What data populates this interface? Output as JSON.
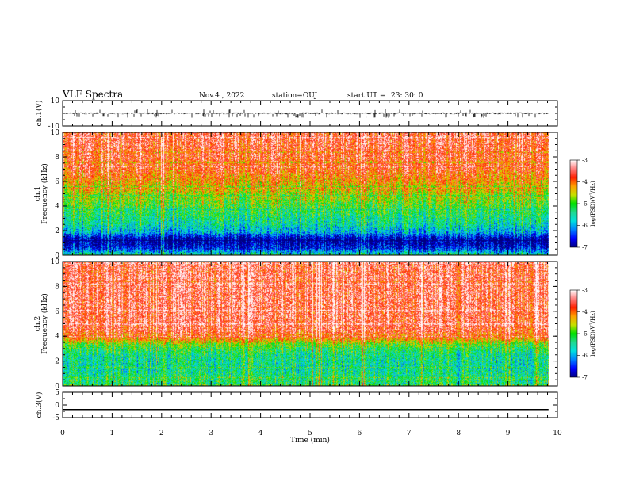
{
  "header": {
    "title": "VLF Spectra",
    "date": "Nov.4 , 2022",
    "station": "station=OUJ",
    "start_label": "start  UT  =",
    "start_time": "23: 30: 0"
  },
  "colors": {
    "colormap": [
      "#000080",
      "#0000ff",
      "#0080ff",
      "#00e0e0",
      "#20d890",
      "#00e000",
      "#c8e000",
      "#ffa000",
      "#ff2000",
      "#ff8080",
      "#ffffff"
    ],
    "trace": "#000000"
  },
  "chart_data": [
    {
      "type": "line",
      "id": "ch1-waveform",
      "ylabel": "ch.1(V)",
      "ylim": [
        -10,
        10
      ],
      "yticks": [
        {
          "value": 10,
          "label": "10"
        },
        {
          "value": -10,
          "label": "-10"
        }
      ],
      "xlim": [
        0,
        10
      ],
      "baseline": 0,
      "noise_amplitude": 1.5,
      "spike_amplitude": 3.5
    },
    {
      "type": "heatmap",
      "id": "ch1-spectrogram",
      "ylabel": "ch.1\nFrequency (kHz)",
      "ylabel_lines": [
        "ch.1",
        "Frequency  (kHz)"
      ],
      "xlim": [
        0,
        10
      ],
      "ylim": [
        0,
        10
      ],
      "yticks": [
        {
          "value": 0,
          "label": "0"
        },
        {
          "value": 2,
          "label": "2"
        },
        {
          "value": 4,
          "label": "4"
        },
        {
          "value": 6,
          "label": "6"
        },
        {
          "value": 8,
          "label": "8"
        },
        {
          "value": 10,
          "label": "10"
        }
      ],
      "data_end_min": 9.82,
      "color_scale": {
        "label": "log(PSD)(V²/Hz)",
        "label_parts": [
          "log(PSD)(V",
          "2",
          "/Hz)"
        ],
        "min": -7,
        "max": -3,
        "ticks": [
          {
            "value": -3,
            "label": "-3"
          },
          {
            "value": -4,
            "label": "-4"
          },
          {
            "value": -5,
            "label": "-5"
          },
          {
            "value": -6,
            "label": "-6"
          },
          {
            "value": -7,
            "label": "-7"
          }
        ]
      },
      "profile": [
        {
          "f": 0.0,
          "v": -5.2
        },
        {
          "f": 0.3,
          "v": -6.0
        },
        {
          "f": 0.6,
          "v": -6.6
        },
        {
          "f": 1.0,
          "v": -6.9
        },
        {
          "f": 1.4,
          "v": -6.9
        },
        {
          "f": 1.8,
          "v": -6.0
        },
        {
          "f": 2.4,
          "v": -5.6
        },
        {
          "f": 3.2,
          "v": -5.3
        },
        {
          "f": 4.0,
          "v": -5.0
        },
        {
          "f": 5.0,
          "v": -4.6
        },
        {
          "f": 6.0,
          "v": -4.2
        },
        {
          "f": 7.0,
          "v": -3.8
        },
        {
          "f": 8.0,
          "v": -3.7
        },
        {
          "f": 9.0,
          "v": -3.6
        },
        {
          "f": 10.0,
          "v": -3.6
        }
      ]
    },
    {
      "type": "heatmap",
      "id": "ch2-spectrogram",
      "ylabel": "ch.2\nFrequency (kHz)",
      "ylabel_lines": [
        "ch.2",
        "Frequency  (kHz)"
      ],
      "xlim": [
        0,
        10
      ],
      "ylim": [
        0,
        10
      ],
      "yticks": [
        {
          "value": 0,
          "label": "0"
        },
        {
          "value": 2,
          "label": "2"
        },
        {
          "value": 4,
          "label": "4"
        },
        {
          "value": 6,
          "label": "6"
        },
        {
          "value": 8,
          "label": "8"
        },
        {
          "value": 10,
          "label": "10"
        }
      ],
      "data_end_min": 9.82,
      "color_scale": {
        "label": "log(PSD)(V²/Hz)",
        "label_parts": [
          "log(PSD)(V",
          "2",
          "/Hz)"
        ],
        "min": -7,
        "max": -3,
        "ticks": [
          {
            "value": -3,
            "label": "-3"
          },
          {
            "value": -4,
            "label": "-4"
          },
          {
            "value": -5,
            "label": "-5"
          },
          {
            "value": -6,
            "label": "-6"
          },
          {
            "value": -7,
            "label": "-7"
          }
        ]
      },
      "profile": [
        {
          "f": 0.0,
          "v": -5.0
        },
        {
          "f": 0.5,
          "v": -5.3
        },
        {
          "f": 1.5,
          "v": -5.5
        },
        {
          "f": 2.5,
          "v": -5.4
        },
        {
          "f": 3.3,
          "v": -5.0
        },
        {
          "f": 3.8,
          "v": -4.1
        },
        {
          "f": 4.5,
          "v": -3.6
        },
        {
          "f": 6.0,
          "v": -3.5
        },
        {
          "f": 8.0,
          "v": -3.5
        },
        {
          "f": 10.0,
          "v": -3.5
        }
      ]
    },
    {
      "type": "line",
      "id": "ch3-waveform",
      "ylabel": "ch.3(V)",
      "ylim": [
        -5,
        5
      ],
      "yticks": [
        {
          "value": 5,
          "label": "5"
        },
        {
          "value": 0,
          "label": "0"
        },
        {
          "value": -5,
          "label": "-5"
        }
      ],
      "xlim": [
        0,
        10
      ],
      "baseline": -1.8
    }
  ],
  "x_axis": {
    "label": "Time  (min)",
    "min": 0,
    "max": 10,
    "ticks": [
      {
        "value": 0,
        "label": "0"
      },
      {
        "value": 1,
        "label": "1"
      },
      {
        "value": 2,
        "label": "2"
      },
      {
        "value": 3,
        "label": "3"
      },
      {
        "value": 4,
        "label": "4"
      },
      {
        "value": 5,
        "label": "5"
      },
      {
        "value": 6,
        "label": "6"
      },
      {
        "value": 7,
        "label": "7"
      },
      {
        "value": 8,
        "label": "8"
      },
      {
        "value": 9,
        "label": "9"
      },
      {
        "value": 10,
        "label": "10"
      }
    ]
  }
}
